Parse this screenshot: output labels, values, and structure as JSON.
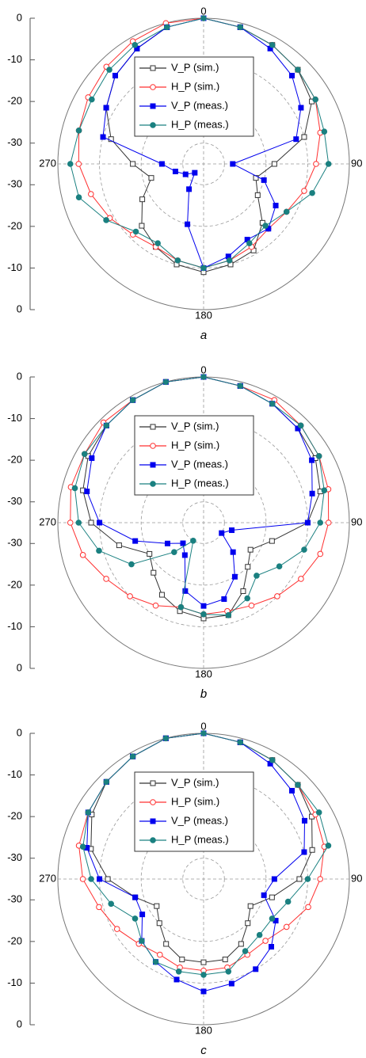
{
  "chart_data": [
    {
      "type": "polar",
      "label": "a",
      "theta": [
        0,
        15,
        30,
        45,
        60,
        75,
        90,
        105,
        120,
        135,
        150,
        165,
        180,
        195,
        210,
        225,
        240,
        255,
        270,
        285,
        300,
        315,
        330,
        345
      ],
      "rlim": [
        -35,
        0
      ],
      "rticks": [
        0,
        -10,
        -20,
        -30
      ],
      "angle_ticks": [
        0,
        90,
        180,
        270
      ],
      "grid": true,
      "series": [
        {
          "name": "V_P (sim.)",
          "color": "#333333",
          "marker": "square",
          "filled": false,
          "values": [
            0,
            -1,
            -2,
            -3,
            -5,
            -10,
            -18,
            -22,
            -20,
            -15,
            -11,
            -10,
            -9,
            -10,
            -12,
            -14,
            -18,
            -22,
            -18,
            -12,
            -8,
            -5,
            -3,
            -1
          ]
        },
        {
          "name": "H_P (sim.)",
          "color": "#ff3030",
          "marker": "circle",
          "filled": false,
          "values": [
            0,
            -1,
            -2,
            -3,
            -4,
            -6,
            -8,
            -10,
            -12,
            -13,
            -12,
            -11,
            -10,
            -11,
            -12,
            -11,
            -9,
            -7,
            -5,
            -4,
            -3,
            -2,
            -1,
            0
          ]
        },
        {
          "name": "V_P (meas.)",
          "color": "#0000ee",
          "marker": "square",
          "filled": true,
          "values": [
            0,
            -1,
            -3,
            -5,
            -8,
            -12,
            -28,
            -20,
            -15,
            -13,
            -14,
            -12,
            -10,
            -20,
            -28,
            -32,
            -30,
            -28,
            -25,
            -10,
            -8,
            -5,
            -3,
            -1
          ]
        },
        {
          "name": "H_P (meas.)",
          "color": "#1a8080",
          "marker": "circle",
          "filled": true,
          "values": [
            0,
            -1,
            -2,
            -3,
            -4,
            -5,
            -5,
            -8,
            -12,
            -14,
            -13,
            -11,
            -10,
            -11,
            -13,
            -12,
            -8,
            -4,
            -3,
            -4,
            -4,
            -3,
            -2,
            -1
          ]
        }
      ]
    },
    {
      "type": "polar",
      "label": "b",
      "theta": [
        0,
        15,
        30,
        45,
        60,
        75,
        90,
        105,
        120,
        135,
        150,
        165,
        180,
        195,
        210,
        225,
        240,
        255,
        270,
        285,
        300,
        315,
        330,
        345
      ],
      "rlim": [
        -35,
        0
      ],
      "rticks": [
        0,
        -10,
        -20,
        -30
      ],
      "angle_ticks": [
        0,
        90,
        180,
        270
      ],
      "grid": true,
      "series": [
        {
          "name": "V_P (sim.)",
          "color": "#333333",
          "marker": "square",
          "filled": false,
          "values": [
            0,
            -1,
            -2,
            -3,
            -4,
            -6,
            -10,
            -18,
            -22,
            -20,
            -16,
            -12,
            -12,
            -13,
            -15,
            -18,
            -20,
            -14,
            -8,
            -5,
            -3,
            -2,
            -1,
            0
          ]
        },
        {
          "name": "H_P (sim.)",
          "color": "#ff3030",
          "marker": "circle",
          "filled": false,
          "values": [
            0,
            -1,
            -1,
            -2,
            -3,
            -4,
            -5,
            -6,
            -8,
            -10,
            -12,
            -13,
            -13,
            -14,
            -12,
            -10,
            -8,
            -5,
            -3,
            -2,
            -2,
            -1,
            -1,
            0
          ]
        },
        {
          "name": "V_P (meas.)",
          "color": "#0000ee",
          "marker": "square",
          "filled": true,
          "values": [
            0,
            -1,
            -2,
            -3,
            -5,
            -8,
            -10,
            -28,
            -30,
            -25,
            -20,
            -16,
            -15,
            -18,
            -26,
            -28,
            -25,
            -18,
            -10,
            -6,
            -4,
            -2,
            -1,
            0
          ]
        },
        {
          "name": "H_P (meas.)",
          "color": "#1a8080",
          "marker": "circle",
          "filled": true,
          "values": [
            0,
            -1,
            -2,
            -2,
            -3,
            -5,
            -7,
            -10,
            -14,
            -17,
            -14,
            -12,
            -13,
            -14,
            -30,
            -25,
            -15,
            -9,
            -5,
            -3,
            -2,
            -2,
            -1,
            0
          ]
        }
      ]
    },
    {
      "type": "polar",
      "label": "c",
      "theta": [
        0,
        15,
        30,
        45,
        60,
        75,
        90,
        105,
        120,
        135,
        150,
        165,
        180,
        195,
        210,
        225,
        240,
        255,
        270,
        285,
        300,
        315,
        330,
        345
      ],
      "rlim": [
        -35,
        0
      ],
      "rticks": [
        0,
        -10,
        -20,
        -30
      ],
      "angle_ticks": [
        0,
        90,
        180,
        270
      ],
      "grid": true,
      "series": [
        {
          "name": "V_P (sim.)",
          "color": "#333333",
          "marker": "square",
          "filled": false,
          "values": [
            0,
            -1,
            -2,
            -3,
            -5,
            -8,
            -12,
            -18,
            -22,
            -20,
            -17,
            -15,
            -15,
            -15,
            -17,
            -20,
            -22,
            -18,
            -12,
            -7,
            -4,
            -2,
            -1,
            0
          ]
        },
        {
          "name": "H_P (sim.)",
          "color": "#ff3030",
          "marker": "circle",
          "filled": false,
          "values": [
            0,
            -1,
            -2,
            -3,
            -4,
            -5,
            -7,
            -9,
            -12,
            -14,
            -14,
            -13,
            -13,
            -13,
            -14,
            -13,
            -11,
            -9,
            -6,
            -4,
            -3,
            -2,
            -1,
            0
          ]
        },
        {
          "name": "V_P (meas.)",
          "color": "#0000ee",
          "marker": "square",
          "filled": true,
          "values": [
            0,
            -1,
            -3,
            -5,
            -7,
            -10,
            -18,
            -20,
            -15,
            -12,
            -10,
            -9,
            -8,
            -10,
            -12,
            -14,
            -18,
            -18,
            -10,
            -6,
            -3,
            -2,
            -1,
            0
          ]
        },
        {
          "name": "H_P (meas.)",
          "color": "#1a8080",
          "marker": "circle",
          "filled": true,
          "values": [
            0,
            -1,
            -2,
            -3,
            -3,
            -4,
            -10,
            -14,
            -16,
            -16,
            -15,
            -12,
            -12,
            -12,
            -12,
            -14,
            -16,
            -12,
            -8,
            -5,
            -3,
            -2,
            -1,
            0
          ]
        }
      ]
    }
  ]
}
